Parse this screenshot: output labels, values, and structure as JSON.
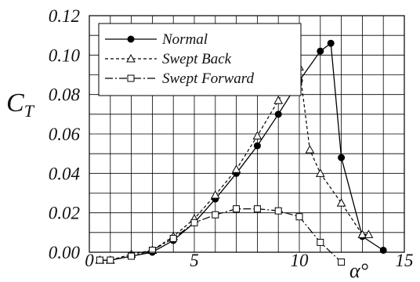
{
  "chart_data": {
    "type": "line",
    "xlabel": "α°",
    "ylabel": "C",
    "ylabel_sub": "T",
    "xlim": [
      0,
      15
    ],
    "ylim": [
      0.0,
      0.12
    ],
    "x_ticks": [
      "0",
      "5",
      "10",
      "15"
    ],
    "y_ticks": [
      "0.00",
      "0.02",
      "0.04",
      "0.06",
      "0.08",
      "0.10",
      "0.12"
    ],
    "grid": true,
    "legend_position": "top-left",
    "series": [
      {
        "name": "Normal",
        "line_style": "solid",
        "marker": "filled-circle",
        "points": [
          [
            0.5,
            -0.004
          ],
          [
            1,
            -0.004
          ],
          [
            2,
            -0.002
          ],
          [
            3,
            0.0
          ],
          [
            4,
            0.006
          ],
          [
            5,
            0.015
          ],
          [
            6,
            0.027
          ],
          [
            7,
            0.04
          ],
          [
            8,
            0.054
          ],
          [
            9,
            0.07
          ],
          [
            10,
            0.087
          ],
          [
            11,
            0.102
          ],
          [
            11.5,
            0.106
          ],
          [
            12,
            0.048
          ],
          [
            13,
            0.008
          ],
          [
            14,
            0.001
          ]
        ]
      },
      {
        "name": "Swept Back",
        "line_style": "dashed",
        "marker": "open-triangle",
        "points": [
          [
            0.5,
            -0.004
          ],
          [
            1,
            -0.004
          ],
          [
            2,
            -0.001
          ],
          [
            3,
            0.001
          ],
          [
            4,
            0.008
          ],
          [
            5,
            0.017
          ],
          [
            6,
            0.029
          ],
          [
            7,
            0.042
          ],
          [
            8,
            0.059
          ],
          [
            9,
            0.077
          ],
          [
            10,
            0.094
          ],
          [
            10.5,
            0.052
          ],
          [
            11,
            0.04
          ],
          [
            12,
            0.025
          ],
          [
            13,
            0.009
          ],
          [
            13.3,
            0.009
          ]
        ]
      },
      {
        "name": "Swept Forward",
        "line_style": "dashdot",
        "marker": "open-square",
        "points": [
          [
            0.5,
            -0.004
          ],
          [
            1,
            -0.004
          ],
          [
            2,
            -0.002
          ],
          [
            3,
            0.001
          ],
          [
            4,
            0.007
          ],
          [
            5,
            0.015
          ],
          [
            6,
            0.019
          ],
          [
            7,
            0.022
          ],
          [
            8,
            0.022
          ],
          [
            9,
            0.021
          ],
          [
            10,
            0.018
          ],
          [
            11,
            0.005
          ],
          [
            12,
            -0.005
          ]
        ]
      }
    ]
  }
}
